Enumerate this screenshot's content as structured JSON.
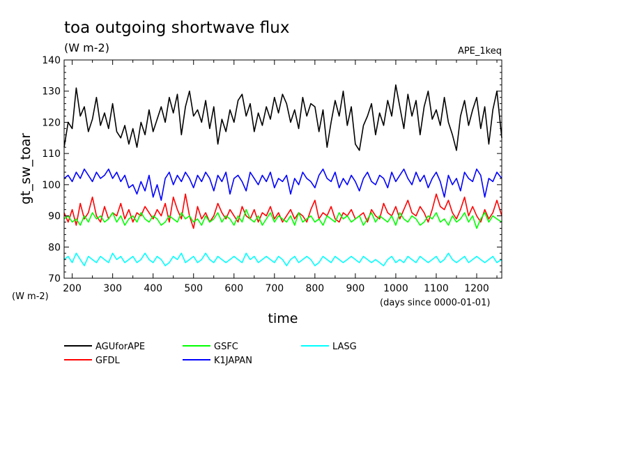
{
  "chart_data": {
    "type": "line",
    "title": "toa outgoing shortwave flux",
    "subtitle": "(W m-2)",
    "dataset_label": "APE_1keq",
    "ylabel": "gt_sw_toar",
    "xlabel": "time",
    "y_unit_label": "(W m-2)",
    "x_unit_label": "(days since 0000-01-01)",
    "xlim": [
      180,
      1262
    ],
    "ylim": [
      70,
      140
    ],
    "xticks": [
      200,
      300,
      400,
      500,
      600,
      700,
      800,
      900,
      1000,
      1100,
      1200
    ],
    "yticks": [
      70,
      80,
      90,
      100,
      110,
      120,
      130,
      140
    ],
    "x_tick_labels": [
      "200",
      "300",
      "400",
      "500",
      "600",
      "700",
      "800",
      "900",
      "1000",
      "1100",
      "1200"
    ],
    "y_tick_labels": [
      "70",
      "80",
      "90",
      "100",
      "110",
      "120",
      "130",
      "140"
    ],
    "grid": false,
    "legend_position": "bottom-left",
    "series": [
      {
        "name": "AGUforAPE",
        "color": "#000000",
        "x": [
          180,
          190,
          200,
          210,
          220,
          230,
          240,
          250,
          260,
          270,
          280,
          290,
          300,
          310,
          320,
          330,
          340,
          350,
          360,
          370,
          380,
          390,
          400,
          410,
          420,
          430,
          440,
          450,
          460,
          470,
          480,
          490,
          500,
          510,
          520,
          530,
          540,
          550,
          560,
          570,
          580,
          590,
          600,
          610,
          620,
          630,
          640,
          650,
          660,
          670,
          680,
          690,
          700,
          710,
          720,
          730,
          740,
          750,
          760,
          770,
          780,
          790,
          800,
          810,
          820,
          830,
          840,
          850,
          860,
          870,
          880,
          890,
          900,
          910,
          920,
          930,
          940,
          950,
          960,
          970,
          980,
          990,
          1000,
          1010,
          1020,
          1030,
          1040,
          1050,
          1060,
          1070,
          1080,
          1090,
          1100,
          1110,
          1120,
          1130,
          1140,
          1150,
          1160,
          1170,
          1180,
          1190,
          1200,
          1210,
          1220,
          1230,
          1240,
          1250,
          1262
        ],
        "y": [
          112,
          120,
          118,
          131,
          122,
          125,
          117,
          121,
          128,
          119,
          123,
          118,
          126,
          117,
          115,
          119,
          113,
          118,
          112,
          120,
          116,
          124,
          117,
          121,
          125,
          120,
          128,
          123,
          129,
          116,
          125,
          130,
          122,
          124,
          120,
          127,
          118,
          125,
          113,
          121,
          117,
          124,
          120,
          127,
          129,
          122,
          126,
          117,
          123,
          119,
          125,
          121,
          128,
          123,
          129,
          126,
          120,
          124,
          118,
          128,
          122,
          126,
          125,
          117,
          124,
          112,
          120,
          127,
          122,
          130,
          119,
          125,
          113,
          111,
          119,
          122,
          126,
          116,
          123,
          119,
          127,
          122,
          132,
          125,
          118,
          129,
          122,
          127,
          116,
          125,
          130,
          121,
          124,
          119,
          128,
          120,
          116,
          111,
          122,
          127,
          119,
          124,
          128,
          118,
          125,
          113,
          124,
          130,
          115
        ]
      },
      {
        "name": "GFDL",
        "color": "#ff0000",
        "x": [
          180,
          190,
          200,
          210,
          220,
          230,
          240,
          250,
          260,
          270,
          280,
          290,
          300,
          310,
          320,
          330,
          340,
          350,
          360,
          370,
          380,
          390,
          400,
          410,
          420,
          430,
          440,
          450,
          460,
          470,
          480,
          490,
          500,
          510,
          520,
          530,
          540,
          550,
          560,
          570,
          580,
          590,
          600,
          610,
          620,
          630,
          640,
          650,
          660,
          670,
          680,
          690,
          700,
          710,
          720,
          730,
          740,
          750,
          760,
          770,
          780,
          790,
          800,
          810,
          820,
          830,
          840,
          850,
          860,
          870,
          880,
          890,
          900,
          910,
          920,
          930,
          940,
          950,
          960,
          970,
          980,
          990,
          1000,
          1010,
          1020,
          1030,
          1040,
          1050,
          1060,
          1070,
          1080,
          1090,
          1100,
          1110,
          1120,
          1130,
          1140,
          1150,
          1160,
          1170,
          1180,
          1190,
          1200,
          1210,
          1220,
          1230,
          1240,
          1250,
          1262
        ],
        "y": [
          91,
          88,
          92,
          87,
          94,
          89,
          91,
          96,
          90,
          88,
          93,
          89,
          91,
          90,
          94,
          89,
          92,
          88,
          91,
          90,
          93,
          91,
          89,
          92,
          90,
          94,
          88,
          96,
          92,
          89,
          97,
          90,
          86,
          93,
          89,
          91,
          88,
          90,
          94,
          91,
          89,
          92,
          90,
          88,
          93,
          90,
          89,
          92,
          88,
          91,
          90,
          93,
          89,
          91,
          88,
          90,
          92,
          89,
          91,
          90,
          88,
          92,
          95,
          89,
          91,
          90,
          93,
          89,
          88,
          91,
          90,
          92,
          89,
          90,
          91,
          88,
          92,
          90,
          89,
          94,
          91,
          90,
          93,
          89,
          92,
          95,
          91,
          90,
          93,
          91,
          88,
          92,
          97,
          93,
          92,
          95,
          91,
          89,
          92,
          96,
          90,
          93,
          90,
          88,
          92,
          89,
          91,
          95,
          90
        ]
      },
      {
        "name": "GSFC",
        "color": "#00ff00",
        "x": [
          180,
          190,
          200,
          210,
          220,
          230,
          240,
          250,
          260,
          270,
          280,
          290,
          300,
          310,
          320,
          330,
          340,
          350,
          360,
          370,
          380,
          390,
          400,
          410,
          420,
          430,
          440,
          450,
          460,
          470,
          480,
          490,
          500,
          510,
          520,
          530,
          540,
          550,
          560,
          570,
          580,
          590,
          600,
          610,
          620,
          630,
          640,
          650,
          660,
          670,
          680,
          690,
          700,
          710,
          720,
          730,
          740,
          750,
          760,
          770,
          780,
          790,
          800,
          810,
          820,
          830,
          840,
          850,
          860,
          870,
          880,
          890,
          900,
          910,
          920,
          930,
          940,
          950,
          960,
          970,
          980,
          990,
          1000,
          1010,
          1020,
          1030,
          1040,
          1050,
          1060,
          1070,
          1080,
          1090,
          1100,
          1110,
          1120,
          1130,
          1140,
          1150,
          1160,
          1170,
          1180,
          1190,
          1200,
          1210,
          1220,
          1230,
          1240,
          1250,
          1262
        ],
        "y": [
          89,
          90,
          88,
          89,
          87,
          90,
          88,
          91,
          89,
          90,
          88,
          89,
          91,
          88,
          90,
          87,
          89,
          90,
          88,
          91,
          89,
          88,
          90,
          89,
          87,
          88,
          90,
          89,
          88,
          91,
          89,
          90,
          88,
          89,
          87,
          90,
          88,
          89,
          91,
          88,
          90,
          89,
          87,
          90,
          88,
          92,
          89,
          88,
          90,
          87,
          89,
          91,
          88,
          90,
          89,
          88,
          90,
          87,
          91,
          88,
          89,
          90,
          88,
          89,
          87,
          90,
          89,
          88,
          91,
          89,
          90,
          88,
          89,
          90,
          87,
          89,
          91,
          88,
          90,
          89,
          88,
          90,
          87,
          91,
          89,
          88,
          90,
          89,
          87,
          88,
          90,
          89,
          91,
          88,
          89,
          87,
          90,
          88,
          89,
          91,
          88,
          90,
          86,
          89,
          91,
          88,
          90,
          89,
          88
        ]
      },
      {
        "name": "K1JAPAN",
        "color": "#0000ff",
        "x": [
          180,
          190,
          200,
          210,
          220,
          230,
          240,
          250,
          260,
          270,
          280,
          290,
          300,
          310,
          320,
          330,
          340,
          350,
          360,
          370,
          380,
          390,
          400,
          410,
          420,
          430,
          440,
          450,
          460,
          470,
          480,
          490,
          500,
          510,
          520,
          530,
          540,
          550,
          560,
          570,
          580,
          590,
          600,
          610,
          620,
          630,
          640,
          650,
          660,
          670,
          680,
          690,
          700,
          710,
          720,
          730,
          740,
          750,
          760,
          770,
          780,
          790,
          800,
          810,
          820,
          830,
          840,
          850,
          860,
          870,
          880,
          890,
          900,
          910,
          920,
          930,
          940,
          950,
          960,
          970,
          980,
          990,
          1000,
          1010,
          1020,
          1030,
          1040,
          1050,
          1060,
          1070,
          1080,
          1090,
          1100,
          1110,
          1120,
          1130,
          1140,
          1150,
          1160,
          1170,
          1180,
          1190,
          1200,
          1210,
          1220,
          1230,
          1240,
          1250,
          1262
        ],
        "y": [
          102,
          103,
          101,
          104,
          102,
          105,
          103,
          101,
          104,
          102,
          103,
          105,
          102,
          104,
          101,
          103,
          99,
          100,
          97,
          101,
          98,
          103,
          96,
          100,
          95,
          102,
          104,
          100,
          103,
          101,
          104,
          102,
          99,
          103,
          101,
          104,
          102,
          98,
          103,
          101,
          104,
          97,
          102,
          103,
          101,
          98,
          104,
          102,
          100,
          103,
          101,
          104,
          99,
          102,
          101,
          103,
          97,
          102,
          100,
          104,
          102,
          101,
          99,
          103,
          105,
          102,
          101,
          104,
          99,
          102,
          100,
          103,
          101,
          98,
          102,
          104,
          101,
          100,
          103,
          102,
          99,
          104,
          101,
          103,
          105,
          102,
          100,
          104,
          101,
          103,
          99,
          102,
          104,
          101,
          96,
          103,
          100,
          102,
          98,
          104,
          102,
          101,
          105,
          103,
          96,
          102,
          101,
          104,
          102
        ]
      },
      {
        "name": "LASG",
        "color": "#00ffff",
        "x": [
          180,
          190,
          200,
          210,
          220,
          230,
          240,
          250,
          260,
          270,
          280,
          290,
          300,
          310,
          320,
          330,
          340,
          350,
          360,
          370,
          380,
          390,
          400,
          410,
          420,
          430,
          440,
          450,
          460,
          470,
          480,
          490,
          500,
          510,
          520,
          530,
          540,
          550,
          560,
          570,
          580,
          590,
          600,
          610,
          620,
          630,
          640,
          650,
          660,
          670,
          680,
          690,
          700,
          710,
          720,
          730,
          740,
          750,
          760,
          770,
          780,
          790,
          800,
          810,
          820,
          830,
          840,
          850,
          860,
          870,
          880,
          890,
          900,
          910,
          920,
          930,
          940,
          950,
          960,
          970,
          980,
          990,
          1000,
          1010,
          1020,
          1030,
          1040,
          1050,
          1060,
          1070,
          1080,
          1090,
          1100,
          1110,
          1120,
          1130,
          1140,
          1150,
          1160,
          1170,
          1180,
          1190,
          1200,
          1210,
          1220,
          1230,
          1240,
          1250,
          1262
        ],
        "y": [
          76,
          77,
          75,
          78,
          76,
          74,
          77,
          76,
          75,
          77,
          76,
          75,
          78,
          76,
          77,
          75,
          76,
          77,
          75,
          76,
          78,
          76,
          75,
          77,
          76,
          74,
          75,
          77,
          76,
          78,
          75,
          76,
          77,
          75,
          76,
          78,
          76,
          75,
          77,
          76,
          75,
          76,
          77,
          76,
          75,
          78,
          76,
          77,
          75,
          76,
          77,
          76,
          75,
          77,
          76,
          74,
          76,
          77,
          75,
          76,
          77,
          76,
          74,
          75,
          77,
          76,
          75,
          77,
          76,
          75,
          76,
          77,
          76,
          75,
          77,
          76,
          75,
          76,
          75,
          74,
          76,
          77,
          75,
          76,
          75,
          77,
          76,
          75,
          77,
          76,
          75,
          76,
          77,
          75,
          76,
          78,
          76,
          75,
          76,
          77,
          75,
          76,
          77,
          76,
          75,
          76,
          77,
          75,
          76
        ]
      }
    ]
  }
}
